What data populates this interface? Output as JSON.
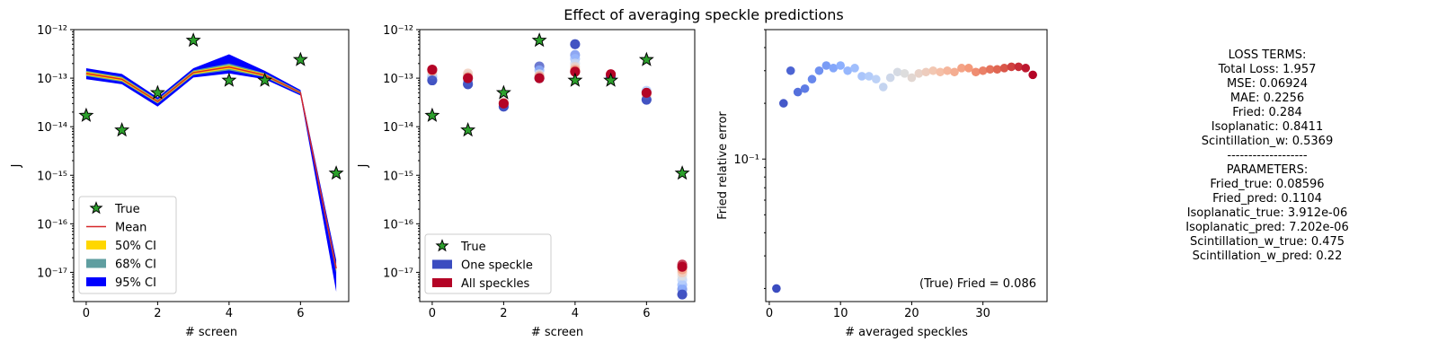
{
  "figure": {
    "title": "Effect of averaging speckle predictions"
  },
  "chart_data": [
    {
      "type": "line",
      "xlabel": "# screen",
      "ylabel": "J",
      "yscale": "log",
      "ylim": [
        2.5e-18,
        1e-12
      ],
      "xlim": [
        -0.35,
        7.35
      ],
      "xticks": [
        "0",
        "2",
        "4",
        "6"
      ],
      "yticks": [
        "10⁻¹²",
        "10⁻¹³",
        "10⁻¹⁴",
        "10⁻¹⁵",
        "10⁻¹⁶",
        "10⁻¹⁷"
      ],
      "legend_position": "lower-left",
      "legend": [
        "True",
        "Mean",
        "50% CI",
        "68% CI",
        "95% CI"
      ],
      "colors": {
        "true": "#2ca02c",
        "mean": "#d62728",
        "ci50": "#ffd700",
        "ci68": "#5f9ea0",
        "ci95": "#0000ff"
      },
      "x": [
        0,
        1,
        2,
        3,
        4,
        5,
        6,
        7
      ],
      "true": [
        1.7e-14,
        8.5e-15,
        5e-14,
        6e-13,
        9e-14,
        9e-14,
        2.4e-13,
        1.1e-15
      ],
      "mean": [
        1.25e-13,
        9.5e-14,
        3.3e-14,
        1.3e-13,
        1.7e-13,
        1.15e-13,
        5e-14,
        1.2e-17
      ],
      "ci50": {
        "low": [
          1.15e-13,
          8.8e-14,
          3.1e-14,
          1.2e-13,
          1.55e-13,
          1.08e-13,
          4.8e-14,
          1.05e-17
        ],
        "high": [
          1.35e-13,
          1.02e-13,
          3.5e-14,
          1.38e-13,
          1.85e-13,
          1.22e-13,
          5.2e-14,
          1.35e-17
        ]
      },
      "ci68": {
        "low": [
          1.1e-13,
          8.4e-14,
          3e-14,
          1.16e-13,
          1.45e-13,
          1.04e-13,
          4.7e-14,
          9.5e-18
        ],
        "high": [
          1.42e-13,
          1.07e-13,
          3.65e-14,
          1.45e-13,
          2e-13,
          1.27e-13,
          5.35e-14,
          1.45e-17
        ]
      },
      "ci95": {
        "low": [
          9.5e-14,
          7.5e-14,
          2.6e-14,
          1.03e-13,
          1.25e-13,
          9.5e-14,
          4.4e-14,
          4e-18
        ],
        "high": [
          1.6e-13,
          1.22e-13,
          4e-14,
          1.6e-13,
          3.1e-13,
          1.42e-13,
          5.7e-14,
          1.8e-17
        ]
      }
    },
    {
      "type": "scatter",
      "xlabel": "# screen",
      "ylabel": "J",
      "yscale": "log",
      "ylim": [
        2.5e-18,
        1e-12
      ],
      "xlim": [
        -0.35,
        7.35
      ],
      "xticks": [
        "0",
        "2",
        "4",
        "6"
      ],
      "yticks": [
        "10⁻¹²",
        "10⁻¹³",
        "10⁻¹⁴",
        "10⁻¹⁵",
        "10⁻¹⁶",
        "10⁻¹⁷"
      ],
      "legend_position": "lower-left",
      "legend": [
        "True",
        "One speckle",
        "All speckles"
      ],
      "colors": {
        "true": "#2ca02c",
        "one": "#3b4cc0",
        "all": "#b40426"
      },
      "x": [
        0,
        1,
        2,
        3,
        4,
        5,
        6,
        7
      ],
      "true": [
        1.7e-14,
        8.5e-15,
        5e-14,
        6e-13,
        9e-14,
        9e-14,
        2.4e-13,
        1.1e-15
      ],
      "one_speckle": [
        9e-14,
        7.5e-14,
        2.6e-14,
        1e-13,
        5e-13,
        1.1e-13,
        3.6e-14,
        3.5e-18
      ],
      "all_speckles": [
        1.5e-13,
        1e-13,
        3e-14,
        1e-13,
        1.35e-13,
        1.2e-13,
        5e-14,
        1.3e-17
      ],
      "spread": {
        "0": [
          9e-14,
          1.05e-13,
          1.2e-13,
          1.35e-13,
          1.45e-13,
          1.5e-13
        ],
        "1": [
          7.5e-14,
          8.5e-14,
          1.15e-13,
          1.25e-13,
          1.05e-13,
          1e-13
        ],
        "2": [
          2.6e-14,
          2.9e-14,
          3.3e-14,
          3.1e-14,
          3e-14
        ],
        "3": [
          1.75e-13,
          1.45e-13,
          1.2e-13,
          1.1e-13,
          1e-13
        ],
        "4": [
          5e-13,
          3e-13,
          2.5e-13,
          2e-13,
          1.7e-13,
          1.5e-13,
          1.4e-13,
          1.35e-13
        ],
        "5": [
          1.1e-13,
          1.15e-13,
          1.2e-13
        ],
        "6": [
          3.6e-14,
          5.5e-14,
          4.5e-14,
          5e-14
        ],
        "7": [
          3.5e-18,
          4.5e-18,
          5.5e-18,
          7e-18,
          8.5e-18,
          1e-17,
          1.15e-17,
          1.3e-17,
          1.45e-17
        ]
      }
    },
    {
      "type": "scatter",
      "xlabel": "# averaged speckles",
      "ylabel": "Fried relative error",
      "yscale": "log",
      "ylim": [
        0.017,
        0.5
      ],
      "xlim": [
        -0.5,
        39
      ],
      "xticks": [
        "0",
        "10",
        "20",
        "30"
      ],
      "yticks": [
        "10⁻¹"
      ],
      "colormap": "coolwarm",
      "annotation": "(True) Fried = 0.086",
      "x": [
        1,
        2,
        3,
        4,
        5,
        6,
        7,
        8,
        9,
        10,
        11,
        12,
        13,
        14,
        15,
        16,
        17,
        18,
        19,
        20,
        21,
        22,
        23,
        24,
        25,
        26,
        27,
        28,
        29,
        30,
        31,
        32,
        33,
        34,
        35,
        36,
        37
      ],
      "values": [
        0.02,
        0.2,
        0.3,
        0.23,
        0.24,
        0.27,
        0.3,
        0.32,
        0.31,
        0.32,
        0.3,
        0.31,
        0.28,
        0.28,
        0.27,
        0.245,
        0.275,
        0.295,
        0.29,
        0.275,
        0.29,
        0.295,
        0.3,
        0.295,
        0.3,
        0.295,
        0.31,
        0.31,
        0.295,
        0.3,
        0.305,
        0.305,
        0.31,
        0.315,
        0.315,
        0.31,
        0.285
      ]
    }
  ],
  "side_text": {
    "lines": [
      "LOSS TERMS:",
      "Total Loss: 1.957",
      "MSE: 0.06924",
      "MAE: 0.2256",
      "Fried: 0.284",
      "Isoplanatic: 0.8411",
      "Scintillation_w: 0.5369",
      "-------------------",
      "PARAMETERS:",
      "Fried_true: 0.08596",
      "Fried_pred: 0.1104",
      "Isoplanatic_true: 3.912e-06",
      "Isoplanatic_pred: 7.202e-06",
      "Scintillation_w_true: 0.475",
      "Scintillation_w_pred: 0.22"
    ]
  }
}
